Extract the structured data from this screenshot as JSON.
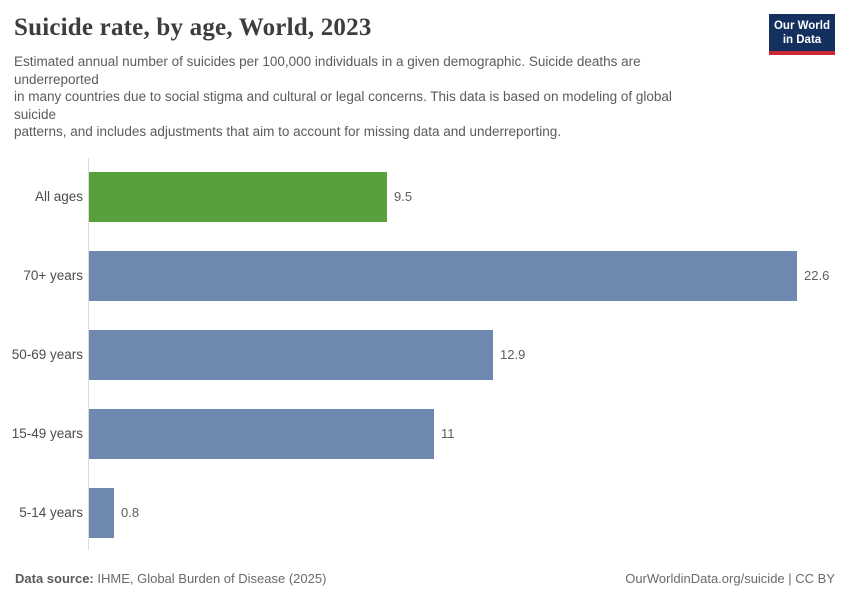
{
  "header": {
    "title": "Suicide rate, by age, World, 2023",
    "subtitle_lines": [
      "Estimated annual number of suicides per 100,000 individuals in a given demographic. Suicide deaths are",
      "underreported",
      "in many countries due to social stigma and cultural or legal concerns. This data is based on modeling of global",
      "suicide",
      "patterns, and includes adjustments that aim to account for missing data and underreporting."
    ],
    "logo": {
      "line1": "Our World",
      "line2": "in Data",
      "background_color": "#14305e",
      "accent_color": "#cc2a33"
    }
  },
  "chart_data": {
    "type": "bar",
    "orientation": "horizontal",
    "title": "Suicide rate, by age, World, 2023",
    "xlabel": "",
    "ylabel": "",
    "xlim": [
      0,
      22.6
    ],
    "grid": false,
    "legend": false,
    "categories": [
      "All ages",
      "70+ years",
      "50-69 years",
      "15-49 years",
      "5-14 years"
    ],
    "values": [
      9.5,
      22.6,
      12.9,
      11,
      0.8
    ],
    "value_labels": [
      "9.5",
      "22.6",
      "12.9",
      "11",
      "0.8"
    ],
    "bar_colors": [
      "#58a03c",
      "#6e88b0",
      "#6e88b0",
      "#6e88b0",
      "#6e88b0"
    ],
    "highlight_color": "#58a03c",
    "default_bar_color": "#6e88b0",
    "axis_line_color": "#dcdcdc"
  },
  "footer": {
    "source_label": "Data source:",
    "source_text": " IHME, Global Burden of Disease (2025)",
    "right_text": "OurWorldinData.org/suicide | CC BY"
  }
}
